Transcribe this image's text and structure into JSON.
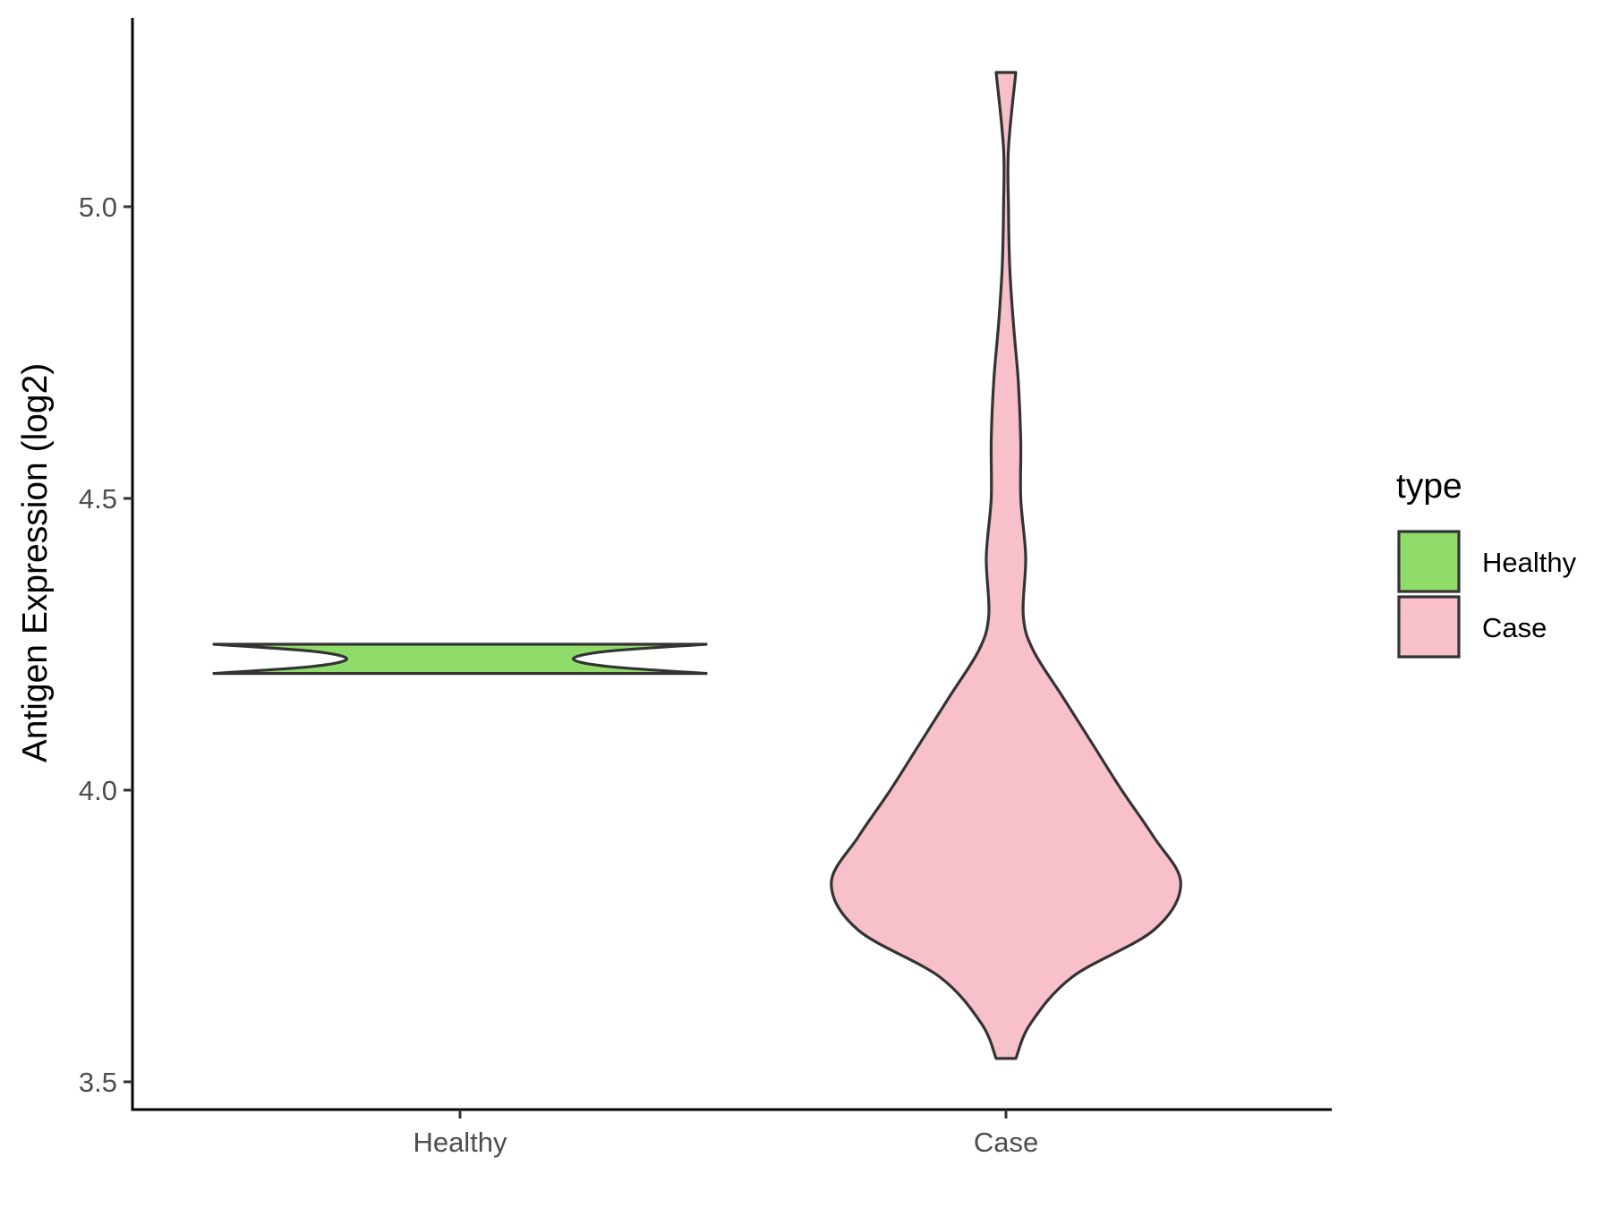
{
  "chart_data": {
    "type": "violin",
    "title": "",
    "xlabel": "",
    "ylabel": "Antigen Expression (log2)",
    "ylim": [
      3.45,
      5.32
    ],
    "yticks": [
      3.5,
      4.0,
      4.5,
      5.0
    ],
    "ytick_labels": [
      "3.5",
      "4.0",
      "4.5",
      "5.0"
    ],
    "categories": [
      "Healthy",
      "Case"
    ],
    "grid": false,
    "legend": {
      "title": "type",
      "position": "right",
      "entries": [
        {
          "label": "Healthy",
          "color": "#90dc6a"
        },
        {
          "label": "Case",
          "color": "#f7c0cb"
        }
      ]
    },
    "series": [
      {
        "category": "Healthy",
        "color": "#90dc6a",
        "y_range": [
          4.2,
          4.25
        ],
        "density_profile": [
          {
            "y": 4.2,
            "w": 1.0
          },
          {
            "y": 4.212,
            "w": 0.6
          },
          {
            "y": 4.225,
            "w": 0.46
          },
          {
            "y": 4.238,
            "w": 0.6
          },
          {
            "y": 4.25,
            "w": 1.0
          }
        ]
      },
      {
        "category": "Case",
        "color": "#f7c0cb",
        "y_range": [
          3.54,
          5.23
        ],
        "density_profile": [
          {
            "y": 3.54,
            "w": 0.04
          },
          {
            "y": 3.6,
            "w": 0.1
          },
          {
            "y": 3.68,
            "w": 0.27
          },
          {
            "y": 3.76,
            "w": 0.6
          },
          {
            "y": 3.84,
            "w": 0.71
          },
          {
            "y": 3.92,
            "w": 0.6
          },
          {
            "y": 4.0,
            "w": 0.47
          },
          {
            "y": 4.08,
            "w": 0.35
          },
          {
            "y": 4.16,
            "w": 0.23
          },
          {
            "y": 4.24,
            "w": 0.11
          },
          {
            "y": 4.3,
            "w": 0.07
          },
          {
            "y": 4.4,
            "w": 0.08
          },
          {
            "y": 4.5,
            "w": 0.06
          },
          {
            "y": 4.6,
            "w": 0.06
          },
          {
            "y": 4.7,
            "w": 0.05
          },
          {
            "y": 4.8,
            "w": 0.03
          },
          {
            "y": 4.9,
            "w": 0.015
          },
          {
            "y": 5.0,
            "w": 0.01
          },
          {
            "y": 5.1,
            "w": 0.01
          },
          {
            "y": 5.23,
            "w": 0.04
          }
        ]
      }
    ]
  }
}
